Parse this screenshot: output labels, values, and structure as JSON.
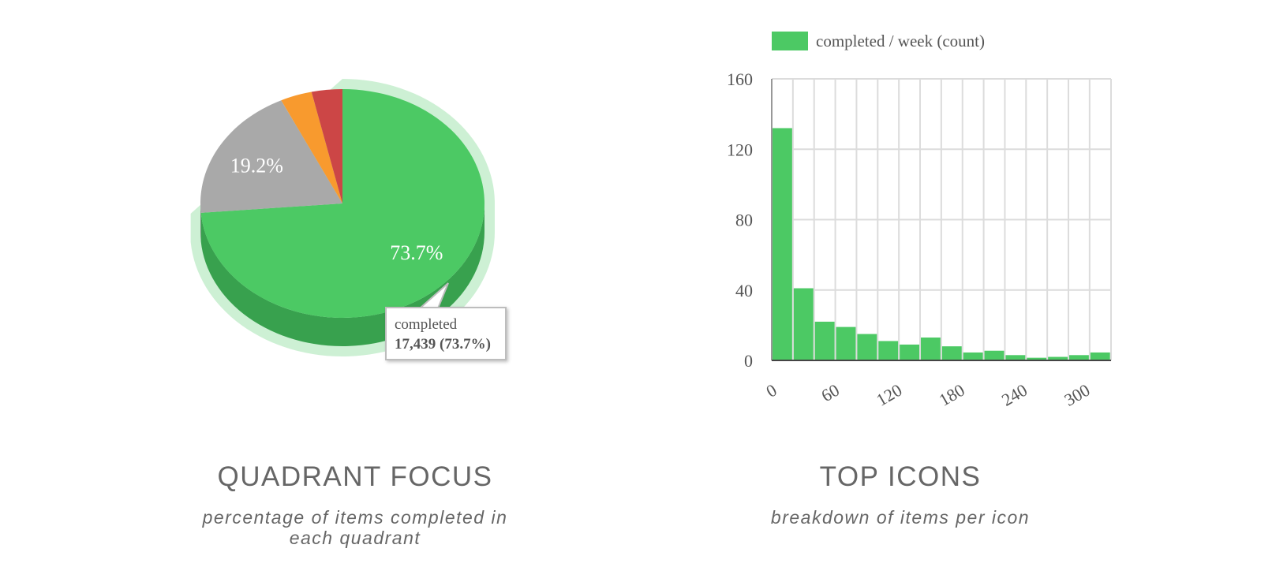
{
  "panels": {
    "left": {
      "title": "QUADRANT FOCUS",
      "subtitle_line1": "percentage of items completed in",
      "subtitle_line2": "each quadrant"
    },
    "right": {
      "title": "TOP ICONS",
      "subtitle": "breakdown of items per icon"
    }
  },
  "tooltip": {
    "label": "completed",
    "value": "17,439 (73.7%)"
  },
  "colors": {
    "green": "#4cc964",
    "green_dark": "#3a9d4d",
    "gray": "#a9a9a9",
    "orange": "#f89a2e",
    "red": "#cc4646",
    "text": "#666666",
    "grid": "#dddddd"
  },
  "chart_data": [
    {
      "type": "pie",
      "title": "QUADRANT FOCUS",
      "subtitle": "percentage of items completed in each quadrant",
      "slices": [
        {
          "name": "completed",
          "value": 73.7,
          "label": "73.7%",
          "color": "#4cc964",
          "count": 17439
        },
        {
          "name": "",
          "value": 19.2,
          "label": "19.2%",
          "color": "#a9a9a9"
        },
        {
          "name": "",
          "value": 3.6,
          "label": "",
          "color": "#f89a2e"
        },
        {
          "name": "",
          "value": 3.5,
          "label": "",
          "color": "#cc4646"
        }
      ]
    },
    {
      "type": "bar",
      "title": "TOP ICONS",
      "subtitle": "breakdown of items per icon",
      "legend": {
        "label": "completed / week (count)",
        "position": "top-left",
        "color": "#4cc964"
      },
      "xlim": [
        0,
        325
      ],
      "ylim": [
        0,
        160
      ],
      "xticks": [
        0,
        60,
        120,
        180,
        240,
        300
      ],
      "yticks": [
        0,
        40,
        80,
        120,
        160
      ],
      "bin_width": 20.3,
      "bins": [
        0,
        20.3,
        40.6,
        60.9,
        81.2,
        101.5,
        121.8,
        142.1,
        162.4,
        182.7,
        203,
        223.3,
        243.6,
        263.9,
        284.2,
        304.5
      ],
      "values": [
        132,
        41,
        22,
        19,
        15,
        11,
        9,
        13,
        8,
        4.5,
        5.5,
        3,
        1.5,
        2,
        3,
        4.5
      ],
      "grid": true
    }
  ]
}
